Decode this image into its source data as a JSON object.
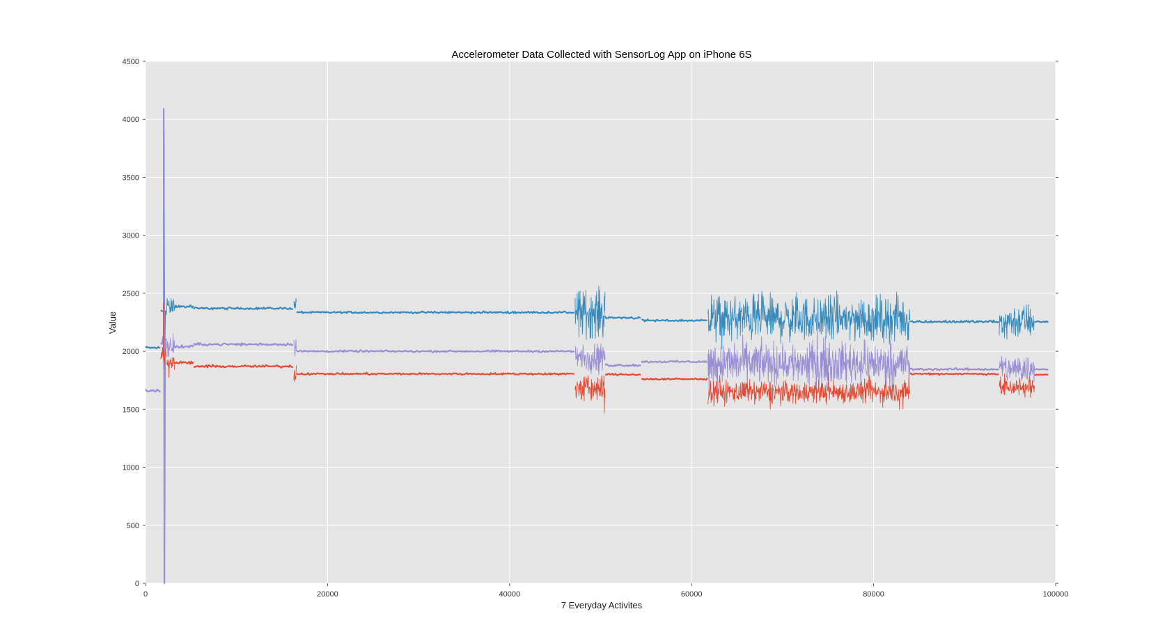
{
  "chart_data": {
    "type": "line",
    "title": "Accelerometer Data Collected with SensorLog App on iPhone 6S",
    "xlabel": "7 Everyday Activites",
    "ylabel": "Value",
    "xlim": [
      0,
      100000
    ],
    "ylim": [
      0,
      4500
    ],
    "x_ticks": [
      "0",
      "20000",
      "40000",
      "60000",
      "80000",
      "100000"
    ],
    "y_ticks": [
      "0",
      "500",
      "1000",
      "1500",
      "2000",
      "2500",
      "3000",
      "3500",
      "4000",
      "4500"
    ],
    "grid": true,
    "background": "#e5e5e5",
    "grid_color": "#ffffff",
    "series": [
      {
        "color": "#348abd",
        "segments": [
          {
            "x": [
              0,
              1700
            ],
            "level": 2030,
            "noise": 8
          },
          {
            "x": [
              1700,
              2300
            ],
            "level": 2350,
            "noise": 25,
            "spike_max": 3900,
            "spike_min": 2000
          },
          {
            "x": [
              2300,
              3200
            ],
            "level": 2390,
            "noise": 60
          },
          {
            "x": [
              3200,
              5300
            ],
            "level": 2385,
            "noise": 10
          },
          {
            "x": [
              5300,
              16300
            ],
            "level": 2370,
            "noise": 7
          },
          {
            "x": [
              16300,
              16600
            ],
            "level": 2400,
            "noise": 60
          },
          {
            "x": [
              16600,
              47200
            ],
            "level": 2335,
            "noise": 6
          },
          {
            "x": [
              47200,
              50500
            ],
            "level": 2330,
            "noise": 150
          },
          {
            "x": [
              50500,
              54500
            ],
            "level": 2290,
            "noise": 8
          },
          {
            "x": [
              54500,
              61800
            ],
            "level": 2265,
            "noise": 7
          },
          {
            "x": [
              61800,
              84000
            ],
            "level": 2280,
            "noise": 140
          },
          {
            "x": [
              84000,
              93800
            ],
            "level": 2255,
            "noise": 8
          },
          {
            "x": [
              93800,
              97700
            ],
            "level": 2260,
            "noise": 110
          },
          {
            "x": [
              97700,
              99300
            ],
            "level": 2255,
            "noise": 6
          }
        ]
      },
      {
        "color": "#988ed5",
        "segments": [
          {
            "x": [
              0,
              1700
            ],
            "level": 1660,
            "noise": 10
          },
          {
            "x": [
              1700,
              2300
            ],
            "level": 2100,
            "noise": 40,
            "spike_max": 4090,
            "spike_min": 0
          },
          {
            "x": [
              2300,
              3200
            ],
            "level": 2030,
            "noise": 50
          },
          {
            "x": [
              3200,
              5300
            ],
            "level": 2040,
            "noise": 10
          },
          {
            "x": [
              5300,
              16300
            ],
            "level": 2060,
            "noise": 8
          },
          {
            "x": [
              16300,
              16600
            ],
            "level": 2050,
            "noise": 60
          },
          {
            "x": [
              16600,
              47200
            ],
            "level": 2000,
            "noise": 6
          },
          {
            "x": [
              47200,
              50500
            ],
            "level": 1950,
            "noise": 90
          },
          {
            "x": [
              50500,
              54500
            ],
            "level": 1880,
            "noise": 8
          },
          {
            "x": [
              54500,
              61800
            ],
            "level": 1910,
            "noise": 6
          },
          {
            "x": [
              61800,
              84000
            ],
            "level": 1900,
            "noise": 130
          },
          {
            "x": [
              84000,
              93800
            ],
            "level": 1845,
            "noise": 7
          },
          {
            "x": [
              93800,
              97700
            ],
            "level": 1850,
            "noise": 90
          },
          {
            "x": [
              97700,
              99300
            ],
            "level": 1845,
            "noise": 5
          }
        ]
      },
      {
        "color": "#e24a33",
        "segments": [
          {
            "x": [
              1600,
              2300
            ],
            "level": 1950,
            "noise": 60,
            "spike_max": 2420,
            "spike_min": 1850
          },
          {
            "x": [
              2300,
              3200
            ],
            "level": 1910,
            "noise": 45
          },
          {
            "x": [
              3200,
              5300
            ],
            "level": 1900,
            "noise": 10
          },
          {
            "x": [
              5300,
              16300
            ],
            "level": 1870,
            "noise": 8
          },
          {
            "x": [
              16300,
              16600
            ],
            "level": 1800,
            "noise": 60
          },
          {
            "x": [
              16600,
              47200
            ],
            "level": 1805,
            "noise": 6
          },
          {
            "x": [
              47200,
              50500
            ],
            "level": 1680,
            "noise": 90
          },
          {
            "x": [
              50500,
              54500
            ],
            "level": 1800,
            "noise": 6
          },
          {
            "x": [
              54500,
              61800
            ],
            "level": 1760,
            "noise": 6
          },
          {
            "x": [
              61800,
              84000
            ],
            "level": 1650,
            "noise": 70
          },
          {
            "x": [
              84000,
              93800
            ],
            "level": 1805,
            "noise": 6
          },
          {
            "x": [
              93800,
              97700
            ],
            "level": 1690,
            "noise": 60
          },
          {
            "x": [
              97700,
              99300
            ],
            "level": 1800,
            "noise": 5
          }
        ]
      }
    ]
  }
}
